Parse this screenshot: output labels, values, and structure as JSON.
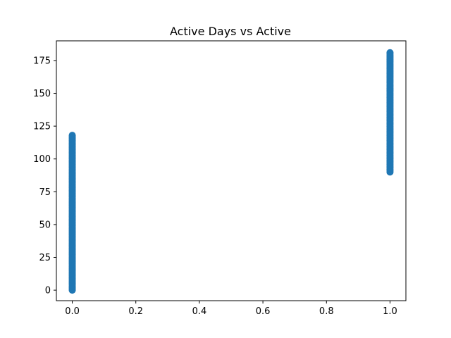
{
  "chart_data": {
    "type": "scatter",
    "title": "Active Days vs Active",
    "xlabel": "",
    "ylabel": "",
    "xlim": [
      -0.05,
      1.05
    ],
    "ylim": [
      -8,
      190
    ],
    "x_ticks": [
      0.0,
      0.2,
      0.4,
      0.6,
      0.8,
      1.0
    ],
    "x_tick_labels": [
      "0.0",
      "0.2",
      "0.4",
      "0.6",
      "0.8",
      "1.0"
    ],
    "y_ticks": [
      0,
      25,
      50,
      75,
      100,
      125,
      150,
      175
    ],
    "y_tick_labels": [
      "0",
      "25",
      "50",
      "75",
      "100",
      "125",
      "150",
      "175"
    ],
    "grid": false,
    "legend": false,
    "point_color": "#1f77b4",
    "series": [
      {
        "x": 0,
        "y_range": [
          0,
          118
        ]
      },
      {
        "x": 1,
        "y_range": [
          90,
          181
        ]
      }
    ]
  }
}
